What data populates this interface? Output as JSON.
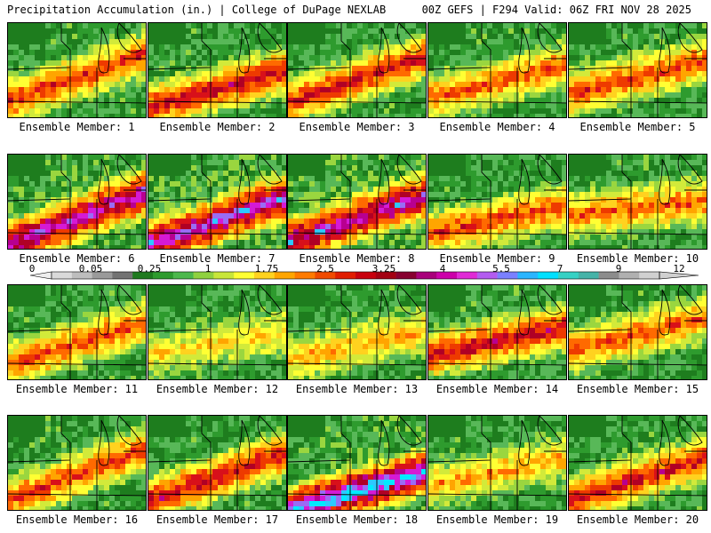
{
  "header": {
    "left": "Precipitation Accumulation (in.) | College of DuPage NEXLAB",
    "right": "00Z GEFS | F294 Valid: 06Z FRI NOV 28 2025"
  },
  "colorbar": {
    "tick_labels": [
      "0",
      "0.05",
      "0.25",
      "1",
      "1.75",
      "2.5",
      "3.25",
      "4",
      "5.5",
      "7",
      "9",
      "12"
    ],
    "colors": [
      "#d9d9d9",
      "#bdbdbd",
      "#9a9a9a",
      "#737373",
      "#1f7a1f",
      "#2e9b2e",
      "#4cb84c",
      "#8fd13f",
      "#c8e63a",
      "#ffff33",
      "#ffd21f",
      "#ffa500",
      "#ff7a00",
      "#f04a00",
      "#e01d00",
      "#c8000e",
      "#a30012",
      "#870030",
      "#a8007a",
      "#cc00aa",
      "#e02ad6",
      "#b35cf0",
      "#7a80ff",
      "#2ab5ff",
      "#00e0ff",
      "#36d1c4",
      "#46b3a8",
      "#8c8c8c",
      "#b0b0b0",
      "#d0d0d0"
    ]
  },
  "members": [
    {
      "label": "Ensemble Member: 1",
      "intensity": 0.62,
      "band": [
        0.78,
        0.72
      ],
      "cool": false
    },
    {
      "label": "Ensemble Member: 2",
      "intensity": 0.7,
      "band": [
        0.85,
        0.55
      ],
      "cool": false
    },
    {
      "label": "Ensemble Member: 3",
      "intensity": 0.66,
      "band": [
        0.8,
        0.7
      ],
      "cool": false
    },
    {
      "label": "Ensemble Member: 4",
      "intensity": 0.55,
      "band": [
        0.75,
        0.6
      ],
      "cool": false
    },
    {
      "label": "Ensemble Member: 5",
      "intensity": 0.6,
      "band": [
        0.7,
        0.65
      ],
      "cool": false
    },
    {
      "label": "Ensemble Member: 6",
      "intensity": 0.72,
      "band": [
        0.9,
        0.65
      ],
      "cool": true
    },
    {
      "label": "Ensemble Member: 7",
      "intensity": 0.75,
      "band": [
        0.9,
        0.6
      ],
      "cool": true
    },
    {
      "label": "Ensemble Member: 8",
      "intensity": 0.7,
      "band": [
        0.88,
        0.62
      ],
      "cool": true
    },
    {
      "label": "Ensemble Member: 9",
      "intensity": 0.6,
      "band": [
        0.8,
        0.5
      ],
      "cool": false
    },
    {
      "label": "Ensemble Member: 10",
      "intensity": 0.55,
      "band": [
        0.6,
        0.55
      ],
      "cool": false
    },
    {
      "label": "Ensemble Member: 11",
      "intensity": 0.58,
      "band": [
        0.8,
        0.65
      ],
      "cool": false
    },
    {
      "label": "Ensemble Member: 12",
      "intensity": 0.35,
      "band": [
        0.7,
        0.55
      ],
      "cool": false
    },
    {
      "label": "Ensemble Member: 13",
      "intensity": 0.42,
      "band": [
        0.75,
        0.55
      ],
      "cool": false
    },
    {
      "label": "Ensemble Member: 14",
      "intensity": 0.7,
      "band": [
        0.7,
        0.6
      ],
      "cool": false
    },
    {
      "label": "Ensemble Member: 15",
      "intensity": 0.55,
      "band": [
        0.65,
        0.7
      ],
      "cool": false
    },
    {
      "label": "Ensemble Member: 16",
      "intensity": 0.6,
      "band": [
        0.85,
        0.7
      ],
      "cool": false
    },
    {
      "label": "Ensemble Member: 17",
      "intensity": 0.7,
      "band": [
        0.85,
        0.65
      ],
      "cool": false
    },
    {
      "label": "Ensemble Member: 18",
      "intensity": 0.85,
      "band": [
        0.95,
        0.45
      ],
      "cool": true
    },
    {
      "label": "Ensemble Member: 19",
      "intensity": 0.45,
      "band": [
        0.7,
        0.6
      ],
      "cool": false
    },
    {
      "label": "Ensemble Member: 20",
      "intensity": 0.68,
      "band": [
        0.85,
        0.6
      ],
      "cool": false
    }
  ]
}
